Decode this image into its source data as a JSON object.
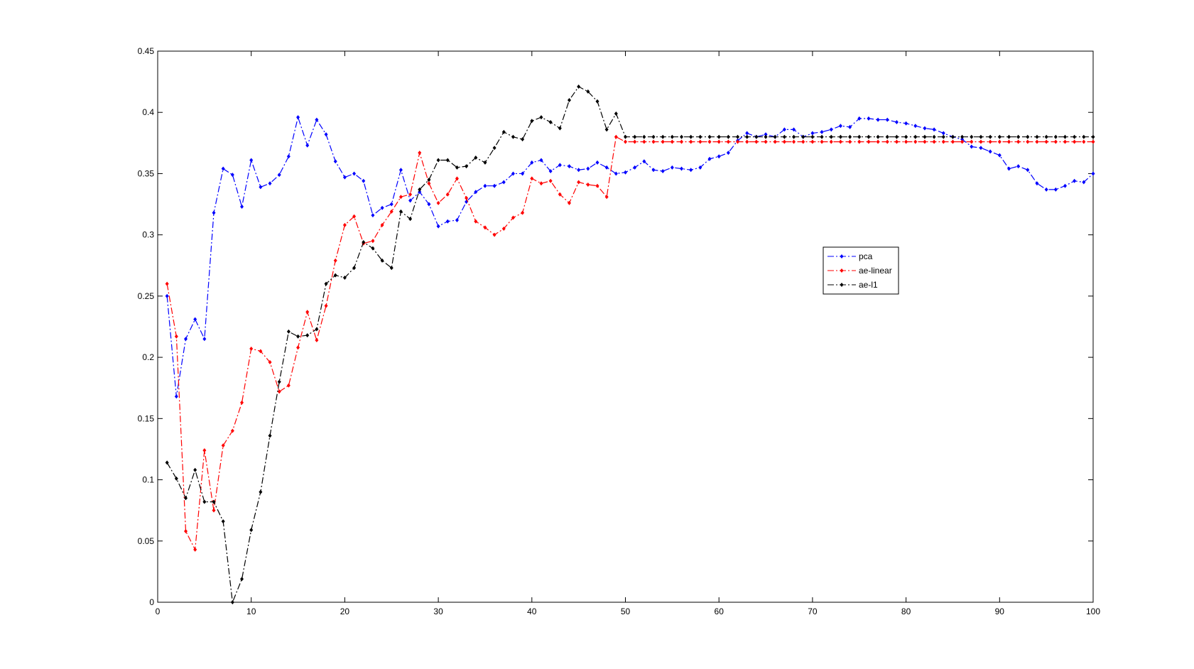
{
  "chart_data": {
    "type": "line",
    "x": [
      1,
      2,
      3,
      4,
      5,
      6,
      7,
      8,
      9,
      10,
      11,
      12,
      13,
      14,
      15,
      16,
      17,
      18,
      19,
      20,
      21,
      22,
      23,
      24,
      25,
      26,
      27,
      28,
      29,
      30,
      31,
      32,
      33,
      34,
      35,
      36,
      37,
      38,
      39,
      40,
      41,
      42,
      43,
      44,
      45,
      46,
      47,
      48,
      49,
      50,
      51,
      52,
      53,
      54,
      55,
      56,
      57,
      58,
      59,
      60,
      61,
      62,
      63,
      64,
      65,
      66,
      67,
      68,
      69,
      70,
      71,
      72,
      73,
      74,
      75,
      76,
      77,
      78,
      79,
      80,
      81,
      82,
      83,
      84,
      85,
      86,
      87,
      88,
      89,
      90,
      91,
      92,
      93,
      94,
      95,
      96,
      97,
      98,
      99,
      100
    ],
    "series": [
      {
        "name": "pca",
        "color": "#0000ff",
        "values": [
          0.25,
          0.168,
          0.215,
          0.231,
          0.215,
          0.318,
          0.354,
          0.349,
          0.323,
          0.361,
          0.339,
          0.342,
          0.349,
          0.364,
          0.396,
          0.373,
          0.394,
          0.382,
          0.36,
          0.347,
          0.35,
          0.344,
          0.316,
          0.322,
          0.325,
          0.353,
          0.328,
          0.335,
          0.325,
          0.307,
          0.311,
          0.312,
          0.327,
          0.335,
          0.34,
          0.34,
          0.343,
          0.35,
          0.35,
          0.359,
          0.361,
          0.352,
          0.357,
          0.356,
          0.353,
          0.354,
          0.359,
          0.355,
          0.35,
          0.351,
          0.355,
          0.36,
          0.353,
          0.352,
          0.355,
          0.354,
          0.353,
          0.355,
          0.362,
          0.364,
          0.367,
          0.377,
          0.383,
          0.38,
          0.382,
          0.38,
          0.386,
          0.386,
          0.38,
          0.383,
          0.384,
          0.386,
          0.389,
          0.388,
          0.395,
          0.395,
          0.394,
          0.394,
          0.392,
          0.391,
          0.389,
          0.387,
          0.386,
          0.383,
          0.38,
          0.378,
          0.372,
          0.371,
          0.368,
          0.365,
          0.354,
          0.356,
          0.353,
          0.342,
          0.337,
          0.337,
          0.34,
          0.344,
          0.343,
          0.35
        ]
      },
      {
        "name": "ae-linear",
        "color": "#ff0000",
        "values": [
          0.26,
          0.217,
          0.058,
          0.043,
          0.124,
          0.075,
          0.128,
          0.14,
          0.163,
          0.207,
          0.205,
          0.196,
          0.172,
          0.177,
          0.208,
          0.237,
          0.214,
          0.242,
          0.279,
          0.308,
          0.315,
          0.293,
          0.295,
          0.308,
          0.319,
          0.331,
          0.333,
          0.367,
          0.342,
          0.326,
          0.333,
          0.346,
          0.33,
          0.311,
          0.306,
          0.3,
          0.305,
          0.314,
          0.318,
          0.346,
          0.342,
          0.344,
          0.333,
          0.326,
          0.343,
          0.341,
          0.34,
          0.331,
          0.38,
          0.376,
          0.376,
          0.376,
          0.376,
          0.376,
          0.376,
          0.376,
          0.376,
          0.376,
          0.376,
          0.376,
          0.376,
          0.376,
          0.376,
          0.376,
          0.376,
          0.376,
          0.376,
          0.376,
          0.376,
          0.376,
          0.376,
          0.376,
          0.376,
          0.376,
          0.376,
          0.376,
          0.376,
          0.376,
          0.376,
          0.376,
          0.376,
          0.376,
          0.376,
          0.376,
          0.376,
          0.376,
          0.376,
          0.376,
          0.376,
          0.376,
          0.376,
          0.376,
          0.376,
          0.376,
          0.376,
          0.376,
          0.376,
          0.376,
          0.376,
          0.376
        ]
      },
      {
        "name": "ae-l1",
        "color": "#000000",
        "values": [
          0.114,
          0.101,
          0.085,
          0.108,
          0.082,
          0.082,
          0.066,
          0.0,
          0.019,
          0.059,
          0.09,
          0.136,
          0.18,
          0.221,
          0.217,
          0.218,
          0.223,
          0.26,
          0.267,
          0.265,
          0.273,
          0.294,
          0.289,
          0.279,
          0.273,
          0.319,
          0.313,
          0.337,
          0.345,
          0.361,
          0.361,
          0.355,
          0.356,
          0.363,
          0.359,
          0.371,
          0.384,
          0.38,
          0.378,
          0.393,
          0.396,
          0.392,
          0.387,
          0.41,
          0.421,
          0.417,
          0.409,
          0.386,
          0.399,
          0.38,
          0.38,
          0.38,
          0.38,
          0.38,
          0.38,
          0.38,
          0.38,
          0.38,
          0.38,
          0.38,
          0.38,
          0.38,
          0.38,
          0.38,
          0.38,
          0.38,
          0.38,
          0.38,
          0.38,
          0.38,
          0.38,
          0.38,
          0.38,
          0.38,
          0.38,
          0.38,
          0.38,
          0.38,
          0.38,
          0.38,
          0.38,
          0.38,
          0.38,
          0.38,
          0.38,
          0.38,
          0.38,
          0.38,
          0.38,
          0.38,
          0.38,
          0.38,
          0.38,
          0.38,
          0.38,
          0.38,
          0.38,
          0.38,
          0.38,
          0.38
        ]
      }
    ],
    "xlim": [
      0,
      100
    ],
    "xticks": [
      0,
      10,
      20,
      30,
      40,
      50,
      60,
      70,
      80,
      90,
      100
    ],
    "ylim": [
      0,
      0.45
    ],
    "yticks": [
      0,
      0.05,
      0.1,
      0.15,
      0.2,
      0.25,
      0.3,
      0.35,
      0.4,
      0.45
    ],
    "grid": false
  }
}
